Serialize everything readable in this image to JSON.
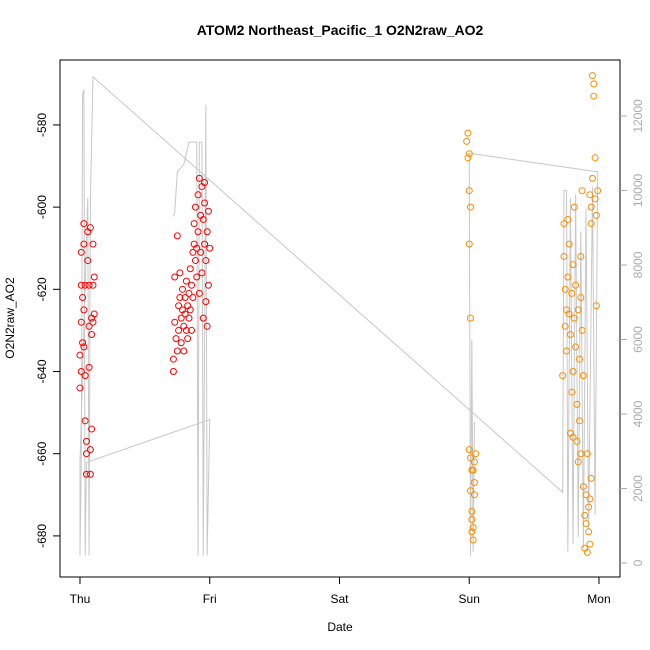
{
  "chart_data": {
    "type": "scatter",
    "title": "ATOM2 Northeast_Pacific_1 O2N2raw_AO2",
    "x_label": "Date",
    "y_label": "O2N2raw_AO2",
    "xlim": [
      -0.154,
      4.162
    ],
    "xticks": [
      {
        "value": 0,
        "label": "Thu"
      },
      {
        "value": 1,
        "label": "Fri"
      },
      {
        "value": 2,
        "label": "Sat"
      },
      {
        "value": 3,
        "label": "Sun"
      },
      {
        "value": 4,
        "label": "Mon"
      }
    ],
    "ylim": [
      -690,
      -564.2
    ],
    "yticks": [
      -680,
      -660,
      -640,
      -620,
      -600,
      -580
    ],
    "y2lim": [
      -376,
      13503
    ],
    "y2ticks": [
      0,
      2000,
      4000,
      6000,
      8000,
      10000,
      12000
    ],
    "series": [
      {
        "type": "line",
        "axis": "y2",
        "color": "#c8c8c8",
        "x": [
          0.72,
          0.73,
          0.75,
          0.8,
          0.84,
          0.9,
          0.91,
          0.92,
          0.94,
          0.95,
          0.96,
          0.97,
          0.98,
          1.0,
          0.05,
          0.04,
          0.03,
          0.02,
          0.01,
          0.0,
          0.0,
          0.06,
          0.07,
          0.08,
          0.1,
          3.72,
          3.73,
          3.75,
          3.76,
          3.78,
          3.8,
          3.82,
          3.84,
          3.86,
          3.88,
          3.9,
          3.92,
          3.95,
          3.97,
          3.99,
          3.0,
          3.01,
          3.02,
          3.03,
          3.04
        ],
        "values": [
          9300,
          9400,
          10500,
          10700,
          11300,
          11300,
          200,
          11300,
          11300,
          200,
          5800,
          12300,
          200,
          3850,
          2700,
          200,
          12700,
          12600,
          2700,
          200,
          2700,
          9800,
          200,
          9700,
          13050,
          1900,
          10000,
          10000,
          300,
          9800,
          500,
          9900,
          700,
          8900,
          400,
          9500,
          900,
          10100,
          1300,
          10500,
          11000,
          200,
          6000,
          300,
          3800
        ]
      },
      {
        "type": "points",
        "color": "#ff0000",
        "x": [
          0.0,
          0.0,
          0.01,
          0.01,
          0.01,
          0.01,
          0.02,
          0.02,
          0.03,
          0.03,
          0.03,
          0.04,
          0.04,
          0.04,
          0.05,
          0.05,
          0.05,
          0.06,
          0.06,
          0.07,
          0.07,
          0.07,
          0.08,
          0.08,
          0.08,
          0.09,
          0.09,
          0.09,
          0.1,
          0.1,
          0.1,
          0.11,
          0.11,
          0.03,
          0.72,
          0.72,
          0.73,
          0.73,
          0.74,
          0.75,
          0.75,
          0.76,
          0.76,
          0.77,
          0.77,
          0.78,
          0.78,
          0.79,
          0.79,
          0.8,
          0.8,
          0.81,
          0.81,
          0.82,
          0.82,
          0.83,
          0.83,
          0.84,
          0.84,
          0.85,
          0.85,
          0.86,
          0.86,
          0.87,
          0.87,
          0.88,
          0.88,
          0.89,
          0.89,
          0.9,
          0.9,
          0.91,
          0.91,
          0.92,
          0.92,
          0.93,
          0.93,
          0.94,
          0.94,
          0.95,
          0.95,
          0.96,
          0.96,
          0.97,
          0.97,
          0.98,
          0.98,
          0.99,
          0.99,
          1.0,
          0.96
        ],
        "values": [
          -644,
          -636,
          -640,
          -628,
          -619,
          -611,
          -622,
          -633,
          -609,
          -625,
          -604,
          -619,
          -641,
          -652,
          -657,
          -660,
          -665,
          -613,
          -606,
          -619,
          -629,
          -639,
          -659,
          -665,
          -605,
          -627,
          -631,
          -654,
          -609,
          -619,
          -628,
          -626,
          -617,
          -634,
          -640,
          -637,
          -617,
          -628,
          -632,
          -607,
          -635,
          -624,
          -630,
          -616,
          -622,
          -627,
          -633,
          -620,
          -625,
          -629,
          -635,
          -622,
          -626,
          -630,
          -618,
          -624,
          -632,
          -627,
          -621,
          -625,
          -615,
          -619,
          -630,
          -611,
          -622,
          -609,
          -604,
          -613,
          -600,
          -610,
          -617,
          -597,
          -606,
          -621,
          -593,
          -602,
          -611,
          -595,
          -616,
          -603,
          -627,
          -599,
          -609,
          -623,
          -613,
          -606,
          -629,
          -619,
          -601,
          -610,
          -594
        ]
      },
      {
        "type": "points",
        "color": "#ff8c00",
        "x": [
          2.98,
          2.99,
          2.99,
          3.0,
          3.0,
          3.01,
          3.0,
          3.01,
          3.0,
          3.01,
          3.01,
          3.02,
          3.02,
          3.02,
          3.03,
          3.03,
          3.03,
          3.04,
          3.04,
          3.04,
          3.05,
          3.02,
          3.72,
          3.73,
          3.73,
          3.74,
          3.74,
          3.75,
          3.75,
          3.76,
          3.76,
          3.77,
          3.77,
          3.78,
          3.78,
          3.79,
          3.79,
          3.8,
          3.8,
          3.81,
          3.81,
          3.82,
          3.82,
          3.83,
          3.83,
          3.84,
          3.84,
          3.85,
          3.85,
          3.86,
          3.86,
          3.87,
          3.87,
          3.88,
          3.88,
          3.89,
          3.89,
          3.9,
          3.9,
          3.91,
          3.91,
          3.92,
          3.92,
          3.93,
          3.93,
          3.94,
          3.94,
          3.95,
          3.95,
          3.96,
          3.96,
          3.97,
          3.97,
          3.98,
          3.98,
          3.99,
          3.93,
          3.94,
          3.86,
          3.8
        ],
        "values": [
          -584,
          -582,
          -588,
          -587,
          -596,
          -600,
          -609,
          -627,
          -659,
          -661,
          -669,
          -664,
          -674,
          -676,
          -678,
          -681,
          -664,
          -662,
          -670,
          -667,
          -660,
          -679,
          -641,
          -604,
          -612,
          -620,
          -629,
          -625,
          -635,
          -617,
          -603,
          -626,
          -609,
          -631,
          -655,
          -621,
          -645,
          -656,
          -614,
          -627,
          -600,
          -634,
          -619,
          -657,
          -648,
          -662,
          -625,
          -637,
          -652,
          -660,
          -612,
          -630,
          -596,
          -641,
          -668,
          -675,
          -683,
          -670,
          -677,
          -684,
          -660,
          -673,
          -679,
          -671,
          -597,
          -604,
          -600,
          -593,
          -568,
          -570,
          -573,
          -598,
          -588,
          -602,
          -624,
          -596,
          -682,
          -666,
          -622,
          -640
        ]
      }
    ]
  }
}
